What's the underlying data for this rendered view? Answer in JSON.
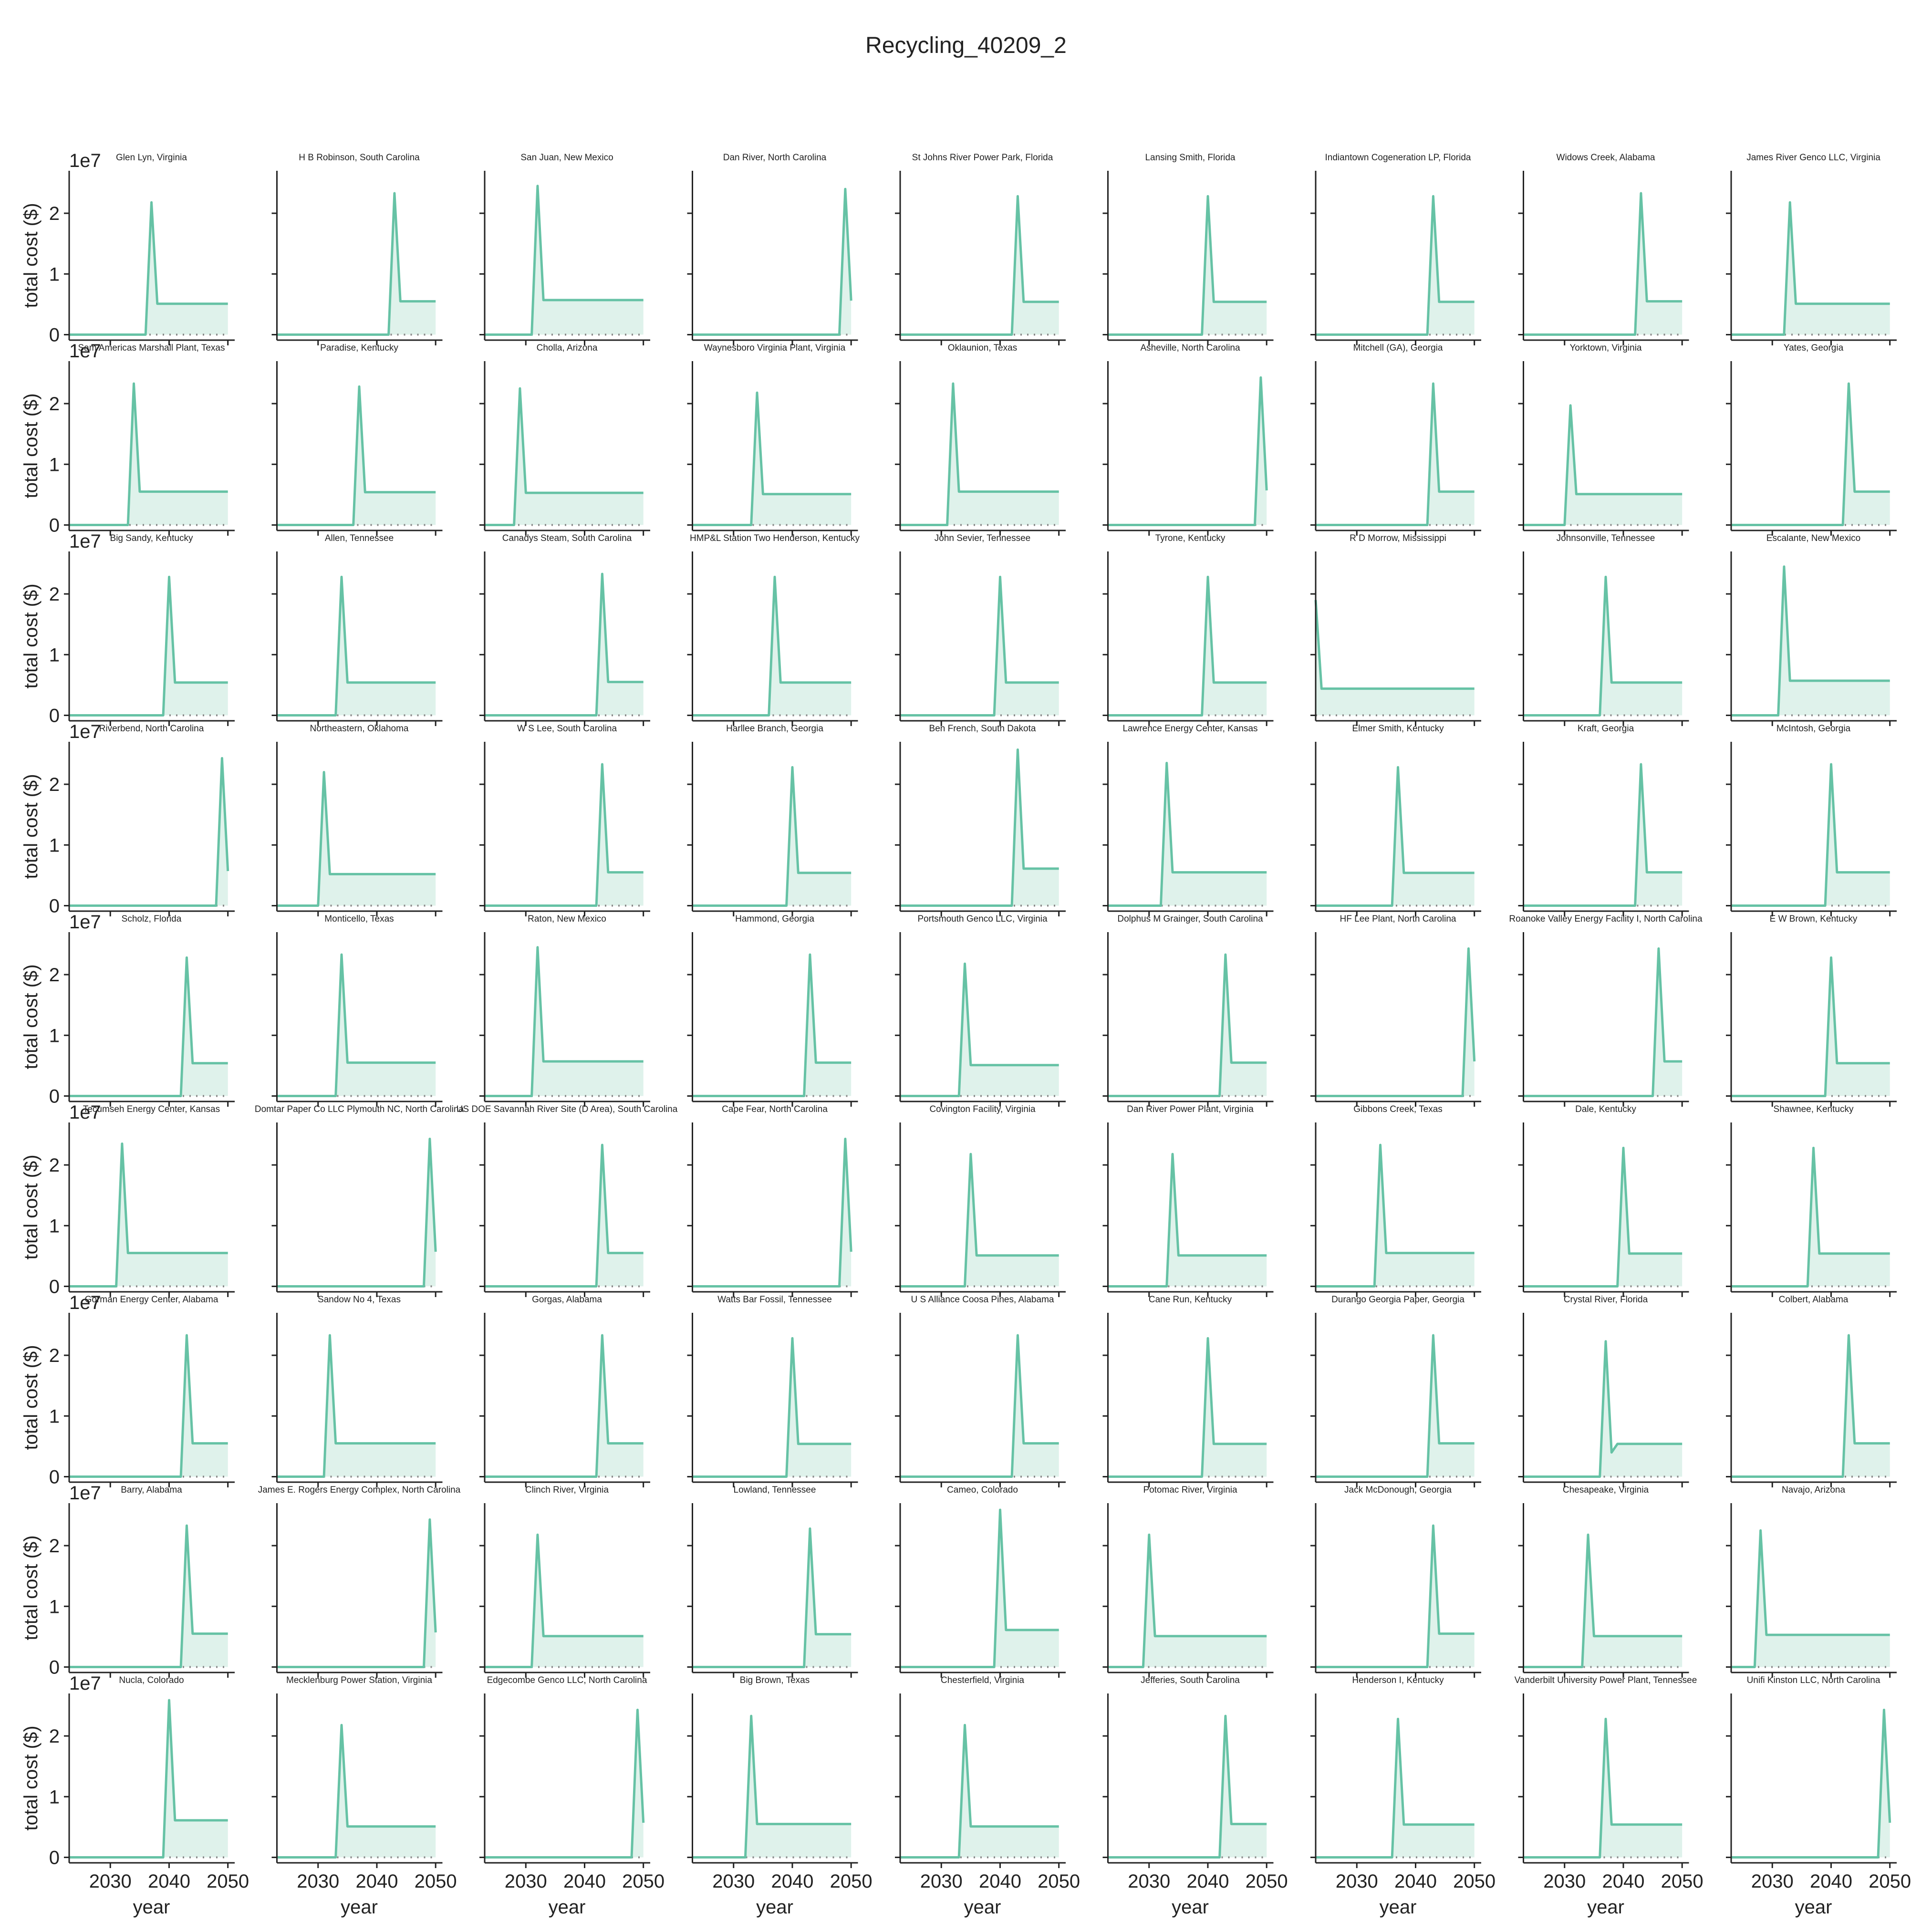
{
  "chart_data": {
    "title": "Recycling_40209_2",
    "type": "line",
    "xlabel": "year",
    "ylabel": "total cost ($)",
    "xlim": [
      2023,
      2051
    ],
    "ylim": [
      -900000,
      27000000
    ],
    "x_ticks": [
      2030,
      2040,
      2050
    ],
    "x_tick_labels": [
      "2030",
      "2040",
      "2050"
    ],
    "y_ticks": [
      0,
      10000000,
      20000000
    ],
    "y_tick_labels": [
      "0",
      "1",
      "2"
    ],
    "y_offset_label": "1e7",
    "grid": false,
    "fill_under_line": true,
    "zero_reference_line": "dotted",
    "colors": {
      "line": "#66c2a5",
      "fill": "#dff2eb",
      "zero_line": "#888888",
      "axis": "#222222"
    },
    "x_years": [
      2023,
      2024,
      2025,
      2026,
      2027,
      2028,
      2029,
      2030,
      2031,
      2032,
      2033,
      2034,
      2035,
      2036,
      2037,
      2038,
      2039,
      2040,
      2041,
      2042,
      2043,
      2044,
      2045,
      2046,
      2047,
      2048,
      2049,
      2050
    ],
    "panels": [
      {
        "name": "Glen Lyn, Virginia",
        "peak_year": 2037,
        "peak": 21800000,
        "after": 5100000
      },
      {
        "name": "H B Robinson, South Carolina",
        "peak_year": 2043,
        "peak": 23300000,
        "after": 5500000
      },
      {
        "name": "San Juan, New Mexico",
        "peak_year": 2032,
        "peak": 24500000,
        "after": 5700000
      },
      {
        "name": "Dan River, North Carolina",
        "peak_year": 2049,
        "peak": 24000000,
        "after": 5600000
      },
      {
        "name": "St Johns River Power Park, Florida",
        "peak_year": 2043,
        "peak": 22800000,
        "after": 5400000
      },
      {
        "name": "Lansing Smith, Florida",
        "peak_year": 2040,
        "peak": 22800000,
        "after": 5400000
      },
      {
        "name": "Indiantown Cogeneration LP, Florida",
        "peak_year": 2043,
        "peak": 22800000,
        "after": 5400000
      },
      {
        "name": "Widows Creek, Alabama",
        "peak_year": 2043,
        "peak": 23300000,
        "after": 5500000
      },
      {
        "name": "James River Genco LLC, Virginia",
        "peak_year": 2033,
        "peak": 21800000,
        "after": 5100000
      },
      {
        "name": "Sam Americas Marshall Plant, Texas",
        "peak_year": 2034,
        "peak": 23300000,
        "after": 5500000
      },
      {
        "name": "Paradise, Kentucky",
        "peak_year": 2037,
        "peak": 22800000,
        "after": 5400000
      },
      {
        "name": "Cholla, Arizona",
        "peak_year": 2029,
        "peak": 22500000,
        "after": 5300000
      },
      {
        "name": "Waynesboro Virginia Plant, Virginia",
        "peak_year": 2034,
        "peak": 21800000,
        "after": 5100000
      },
      {
        "name": "Oklaunion, Texas",
        "peak_year": 2032,
        "peak": 23300000,
        "after": 5500000
      },
      {
        "name": "Asheville, North Carolina",
        "peak_year": 2049,
        "peak": 24300000,
        "after": 5700000
      },
      {
        "name": "Mitchell (GA), Georgia",
        "peak_year": 2043,
        "peak": 23300000,
        "after": 5500000
      },
      {
        "name": "Yorktown, Virginia",
        "peak_year": 2031,
        "peak": 19700000,
        "after": 5100000
      },
      {
        "name": "Yates, Georgia",
        "peak_year": 2043,
        "peak": 23300000,
        "after": 5500000
      },
      {
        "name": "Big Sandy, Kentucky",
        "peak_year": 2040,
        "peak": 22800000,
        "after": 5400000
      },
      {
        "name": "Allen, Tennessee",
        "peak_year": 2034,
        "peak": 22800000,
        "after": 5400000
      },
      {
        "name": "Canadys Steam, South Carolina",
        "peak_year": 2043,
        "peak": 23300000,
        "after": 5500000
      },
      {
        "name": "HMP&L Station Two Henderson, Kentucky",
        "peak_year": 2037,
        "peak": 22800000,
        "after": 5400000
      },
      {
        "name": "John Sevier, Tennessee",
        "peak_year": 2040,
        "peak": 22800000,
        "after": 5400000
      },
      {
        "name": "Tyrone, Kentucky",
        "peak_year": 2040,
        "peak": 22800000,
        "after": 5400000
      },
      {
        "name": "R D Morrow, Mississippi",
        "peak_year": 2024,
        "peak": 19000000,
        "after": 4400000,
        "start_at_peak": true
      },
      {
        "name": "Johnsonville, Tennessee",
        "peak_year": 2037,
        "peak": 22800000,
        "after": 5400000
      },
      {
        "name": "Escalante, New Mexico",
        "peak_year": 2032,
        "peak": 24500000,
        "after": 5700000
      },
      {
        "name": "Riverbend, North Carolina",
        "peak_year": 2049,
        "peak": 24300000,
        "after": 5700000
      },
      {
        "name": "Northeastern, Oklahoma",
        "peak_year": 2031,
        "peak": 22000000,
        "after": 5200000
      },
      {
        "name": "W S Lee, South Carolina",
        "peak_year": 2043,
        "peak": 23300000,
        "after": 5500000
      },
      {
        "name": "Harllee Branch, Georgia",
        "peak_year": 2040,
        "peak": 22800000,
        "after": 5400000
      },
      {
        "name": "Ben French, South Dakota",
        "peak_year": 2043,
        "peak": 25700000,
        "after": 6100000
      },
      {
        "name": "Lawrence Energy Center, Kansas",
        "peak_year": 2033,
        "peak": 23500000,
        "after": 5500000
      },
      {
        "name": "Elmer Smith, Kentucky",
        "peak_year": 2037,
        "peak": 22800000,
        "after": 5400000
      },
      {
        "name": "Kraft, Georgia",
        "peak_year": 2043,
        "peak": 23300000,
        "after": 5500000
      },
      {
        "name": "McIntosh, Georgia",
        "peak_year": 2040,
        "peak": 23300000,
        "after": 5500000
      },
      {
        "name": "Scholz, Florida",
        "peak_year": 2043,
        "peak": 22800000,
        "after": 5400000
      },
      {
        "name": "Monticello, Texas",
        "peak_year": 2034,
        "peak": 23300000,
        "after": 5500000
      },
      {
        "name": "Raton, New Mexico",
        "peak_year": 2032,
        "peak": 24500000,
        "after": 5700000
      },
      {
        "name": "Hammond, Georgia",
        "peak_year": 2043,
        "peak": 23300000,
        "after": 5500000
      },
      {
        "name": "Portsmouth Genco LLC, Virginia",
        "peak_year": 2034,
        "peak": 21800000,
        "after": 5100000
      },
      {
        "name": "Dolphus M Grainger, South Carolina",
        "peak_year": 2043,
        "peak": 23300000,
        "after": 5500000
      },
      {
        "name": "HF Lee Plant, North Carolina",
        "peak_year": 2049,
        "peak": 24300000,
        "after": 5700000
      },
      {
        "name": "Roanoke Valley Energy Facility I, North Carolina",
        "peak_year": 2046,
        "peak": 24300000,
        "after": 5700000
      },
      {
        "name": "E W Brown, Kentucky",
        "peak_year": 2040,
        "peak": 22800000,
        "after": 5400000
      },
      {
        "name": "Tecumseh Energy Center, Kansas",
        "peak_year": 2032,
        "peak": 23500000,
        "after": 5500000
      },
      {
        "name": "Domtar Paper Co LLC Plymouth NC, North Carolina",
        "peak_year": 2049,
        "peak": 24300000,
        "after": 5700000
      },
      {
        "name": "US DOE Savannah River Site (D Area), South Carolina",
        "peak_year": 2043,
        "peak": 23300000,
        "after": 5500000
      },
      {
        "name": "Cape Fear, North Carolina",
        "peak_year": 2049,
        "peak": 24300000,
        "after": 5700000
      },
      {
        "name": "Covington Facility, Virginia",
        "peak_year": 2035,
        "peak": 21800000,
        "after": 5100000
      },
      {
        "name": "Dan River Power Plant, Virginia",
        "peak_year": 2034,
        "peak": 21800000,
        "after": 5100000
      },
      {
        "name": "Gibbons Creek, Texas",
        "peak_year": 2034,
        "peak": 23300000,
        "after": 5500000
      },
      {
        "name": "Dale, Kentucky",
        "peak_year": 2040,
        "peak": 22800000,
        "after": 5400000
      },
      {
        "name": "Shawnee, Kentucky",
        "peak_year": 2037,
        "peak": 22800000,
        "after": 5400000
      },
      {
        "name": "Gorman Energy Center, Alabama",
        "peak_year": 2043,
        "peak": 23300000,
        "after": 5500000
      },
      {
        "name": "Sandow No 4, Texas",
        "peak_year": 2032,
        "peak": 23300000,
        "after": 5500000
      },
      {
        "name": "Gorgas, Alabama",
        "peak_year": 2043,
        "peak": 23300000,
        "after": 5500000
      },
      {
        "name": "Watts Bar Fossil, Tennessee",
        "peak_year": 2040,
        "peak": 22800000,
        "after": 5400000
      },
      {
        "name": "U S Alliance Coosa Pines, Alabama",
        "peak_year": 2043,
        "peak": 23300000,
        "after": 5500000
      },
      {
        "name": "Cane Run, Kentucky",
        "peak_year": 2040,
        "peak": 22800000,
        "after": 5400000
      },
      {
        "name": "Durango Georgia Paper, Georgia",
        "peak_year": 2043,
        "peak": 23300000,
        "after": 5500000
      },
      {
        "name": "Crystal River, Florida",
        "peak_year": 2037,
        "peak": 22300000,
        "after": 5400000,
        "dip": 4000000
      },
      {
        "name": "Colbert, Alabama",
        "peak_year": 2043,
        "peak": 23300000,
        "after": 5500000
      },
      {
        "name": "Barry, Alabama",
        "peak_year": 2043,
        "peak": 23300000,
        "after": 5500000
      },
      {
        "name": "James E. Rogers Energy Complex, North Carolina",
        "peak_year": 2049,
        "peak": 24300000,
        "after": 5700000
      },
      {
        "name": "Clinch River, Virginia",
        "peak_year": 2032,
        "peak": 21800000,
        "after": 5100000
      },
      {
        "name": "Lowland, Tennessee",
        "peak_year": 2043,
        "peak": 22800000,
        "after": 5400000
      },
      {
        "name": "Cameo, Colorado",
        "peak_year": 2040,
        "peak": 25900000,
        "after": 6100000
      },
      {
        "name": "Potomac River, Virginia",
        "peak_year": 2030,
        "peak": 21800000,
        "after": 5100000
      },
      {
        "name": "Jack McDonough, Georgia",
        "peak_year": 2043,
        "peak": 23300000,
        "after": 5500000
      },
      {
        "name": "Chesapeake, Virginia",
        "peak_year": 2034,
        "peak": 21800000,
        "after": 5100000
      },
      {
        "name": "Navajo, Arizona",
        "peak_year": 2028,
        "peak": 22500000,
        "after": 5300000
      },
      {
        "name": "Nucla, Colorado",
        "peak_year": 2040,
        "peak": 25900000,
        "after": 6100000
      },
      {
        "name": "Mecklenburg Power Station, Virginia",
        "peak_year": 2034,
        "peak": 21800000,
        "after": 5100000
      },
      {
        "name": "Edgecombe Genco LLC, North Carolina",
        "peak_year": 2049,
        "peak": 24300000,
        "after": 5700000
      },
      {
        "name": "Big Brown, Texas",
        "peak_year": 2033,
        "peak": 23300000,
        "after": 5500000
      },
      {
        "name": "Chesterfield, Virginia",
        "peak_year": 2034,
        "peak": 21800000,
        "after": 5100000
      },
      {
        "name": "Jefferies, South Carolina",
        "peak_year": 2043,
        "peak": 23300000,
        "after": 5500000
      },
      {
        "name": "Henderson I, Kentucky",
        "peak_year": 2037,
        "peak": 22800000,
        "after": 5400000
      },
      {
        "name": "Vanderbilt University Power Plant, Tennessee",
        "peak_year": 2037,
        "peak": 22800000,
        "after": 5400000
      },
      {
        "name": "Unifi Kinston LLC, North Carolina",
        "peak_year": 2049,
        "peak": 24300000,
        "after": 5700000
      }
    ]
  }
}
